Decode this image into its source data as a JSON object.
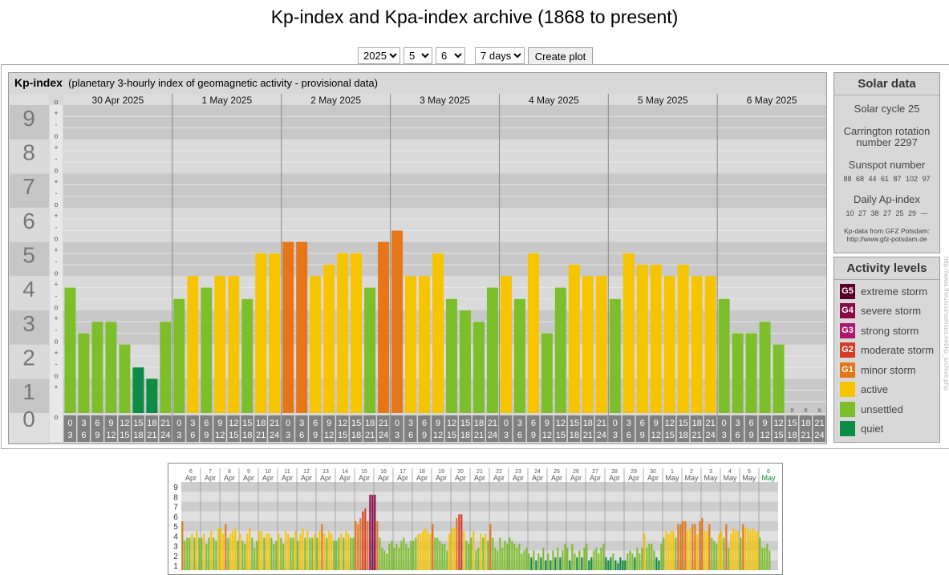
{
  "page": {
    "title": "Kp-index and Kpa-index archive (1868 to present)"
  },
  "controls": {
    "year": "2025",
    "month": "5",
    "day": "6",
    "span": "7 days",
    "create_label": "Create plot"
  },
  "kp_panel": {
    "title": "Kp-index",
    "subtitle": "(planetary 3-hourly index of geomagnetic activity - provisional data)"
  },
  "solar": {
    "title": "Solar data",
    "cycle": "Solar cycle 25",
    "carrington": "Carrington rotation number 2297",
    "sunspot_label": "Sunspot number",
    "sunspot_values": "88 68 44 61 87 102 97",
    "ap_label": "Daily Ap-index",
    "ap_values": "10 27 38 27 25 29 ---",
    "source": "Kp-data from GFZ Potsdam: http://www.gfz-potsdam.de"
  },
  "activity": {
    "title": "Activity levels",
    "items": [
      {
        "code": "G5",
        "label": "extreme storm",
        "color": "#5a0026"
      },
      {
        "code": "G4",
        "label": "severe storm",
        "color": "#8c0848"
      },
      {
        "code": "G3",
        "label": "strong storm",
        "color": "#b0156b"
      },
      {
        "code": "G2",
        "label": "moderate storm",
        "color": "#d63b25"
      },
      {
        "code": "G1",
        "label": "minor storm",
        "color": "#e67617"
      },
      {
        "code": "",
        "label": "active",
        "color": "#f7c400"
      },
      {
        "code": "",
        "label": "unsettled",
        "color": "#7cbf2b"
      },
      {
        "code": "",
        "label": "quiet",
        "color": "#0c8c44"
      }
    ]
  },
  "footer_url": "http://www.theusconsensus.net/kp_archive.php",
  "chart_data": [
    {
      "type": "bar",
      "title": "Kp-index",
      "ylim": [
        0,
        9
      ],
      "y_ticks": [
        "0",
        "1",
        "2",
        "3",
        "4",
        "5",
        "6",
        "7",
        "8",
        "9"
      ],
      "sub_ticks": [
        "o",
        "-",
        "+"
      ],
      "days": [
        "30 Apr 2025",
        "1 May 2025",
        "2 May 2025",
        "3 May 2025",
        "4 May 2025",
        "5 May 2025",
        "6 May 2025"
      ],
      "slot_labels": [
        [
          "0",
          "3"
        ],
        [
          "3",
          "6"
        ],
        [
          "6",
          "9"
        ],
        [
          "9",
          "12"
        ],
        [
          "12",
          "15"
        ],
        [
          "15",
          "18"
        ],
        [
          "18",
          "21"
        ],
        [
          "21",
          "24"
        ]
      ],
      "missing_marker": "x",
      "values": [
        3.667,
        2.333,
        2.667,
        2.667,
        2.0,
        1.333,
        1.0,
        2.667,
        3.333,
        4.0,
        3.667,
        4.0,
        4.0,
        3.333,
        4.667,
        4.667,
        5.0,
        5.0,
        4.0,
        4.333,
        4.667,
        4.667,
        3.667,
        5.0,
        5.333,
        4.0,
        4.0,
        4.667,
        3.333,
        3.0,
        2.667,
        3.667,
        4.0,
        3.333,
        4.667,
        2.333,
        3.667,
        4.333,
        4.0,
        4.0,
        3.333,
        4.667,
        4.333,
        4.333,
        4.0,
        4.333,
        4.0,
        4.0,
        3.333,
        2.333,
        2.333,
        2.667,
        2.0,
        null,
        null,
        null
      ]
    },
    {
      "type": "bar",
      "title": "Kp-index overview",
      "ylim": [
        0,
        9
      ],
      "y_ticks": [
        "1",
        "2",
        "3",
        "4",
        "5",
        "6",
        "7",
        "8",
        "9"
      ],
      "day_numbers": [
        "6",
        "7",
        "8",
        "9",
        "10",
        "11",
        "12",
        "13",
        "14",
        "15",
        "16",
        "17",
        "18",
        "19",
        "20",
        "21",
        "22",
        "23",
        "24",
        "25",
        "26",
        "27",
        "28",
        "29",
        "30",
        "1",
        "2",
        "3",
        "4",
        "5",
        "6"
      ],
      "month_labels": [
        "Apr",
        "Apr",
        "Apr",
        "Apr",
        "Apr",
        "Apr",
        "Apr",
        "Apr",
        "Apr",
        "Apr",
        "Apr",
        "Apr",
        "Apr",
        "Apr",
        "Apr",
        "Apr",
        "Apr",
        "Apr",
        "Apr",
        "Apr",
        "Apr",
        "Apr",
        "Apr",
        "Apr",
        "Apr",
        "May",
        "May",
        "May",
        "May",
        "May",
        "May"
      ],
      "values": [
        5,
        3,
        3.3,
        3.3,
        3.7,
        3.3,
        4,
        3.3,
        3.3,
        3.7,
        2.7,
        3.3,
        4,
        3.3,
        3,
        4.3,
        4.3,
        3.7,
        4.7,
        3.3,
        3.7,
        4,
        4.3,
        3,
        3.7,
        3,
        2.7,
        3.7,
        4.3,
        3.3,
        2.3,
        3,
        4,
        4,
        3.3,
        3.7,
        3.7,
        3.3,
        2.7,
        3,
        3.7,
        3.3,
        2.7,
        4,
        3.7,
        3.3,
        3.3,
        4,
        3,
        3.7,
        4.3,
        3.3,
        4,
        3.3,
        3.3,
        3.7,
        3.3,
        4,
        4.7,
        3.7,
        3.3,
        4,
        3.7,
        3,
        3,
        3.3,
        3.7,
        3.3,
        4,
        3.7,
        3.3,
        3.3,
        5,
        4.7,
        5.3,
        6,
        6.3,
        5,
        7.7,
        7.7,
        7.7,
        5,
        3.3,
        2.3,
        2,
        1.7,
        2.7,
        3,
        2.3,
        2.7,
        2.3,
        3,
        3.3,
        2.7,
        2.3,
        3,
        3,
        3.3,
        3.7,
        3.7,
        4,
        4.3,
        4,
        3.7,
        4.7,
        3.3,
        3.3,
        3,
        2.7,
        2.7,
        2,
        3.7,
        4.3,
        4.3,
        5.3,
        5.7,
        5.7,
        4,
        3,
        2.7,
        3.3,
        4,
        2,
        2.3,
        3.7,
        3.3,
        3.7,
        3,
        4.7,
        3.3,
        2.3,
        2,
        3.3,
        2.3,
        3,
        2.7,
        3.3,
        3,
        2.7,
        2.3,
        2.7,
        1.7,
        2,
        2.3,
        1.7,
        1.3,
        2,
        1,
        1.7,
        1.3,
        2.3,
        1,
        1.7,
        1,
        2,
        1.3,
        2.3,
        1.3,
        2,
        2.7,
        2.3,
        1,
        2.7,
        1.7,
        1.3,
        2,
        1.3,
        2.3,
        2.7,
        1,
        1.3,
        2,
        2.3,
        1.7,
        2.3,
        2.7,
        1.3,
        1,
        1.3,
        1.7,
        1,
        0.7,
        1.3,
        1,
        1,
        1.7,
        2,
        1.7,
        1.3,
        2.3,
        1.7,
        2.3,
        3.7,
        2.3,
        2.7,
        2.7,
        2,
        1.3,
        1,
        2.7,
        3.3,
        4,
        3.7,
        4,
        4,
        3.3,
        4.7,
        4.7,
        5,
        5,
        4,
        4.3,
        4.7,
        4.7,
        3.7,
        5,
        5.3,
        4,
        4,
        4.7,
        3.3,
        3,
        2.7,
        3.7,
        4,
        3.3,
        4.7,
        2.3,
        3.7,
        4.3,
        4,
        4,
        3.3,
        4.7,
        4.3,
        4.3,
        4,
        4.3,
        4,
        4,
        3.3,
        2.3,
        2.3,
        2.7,
        2
      ]
    }
  ]
}
